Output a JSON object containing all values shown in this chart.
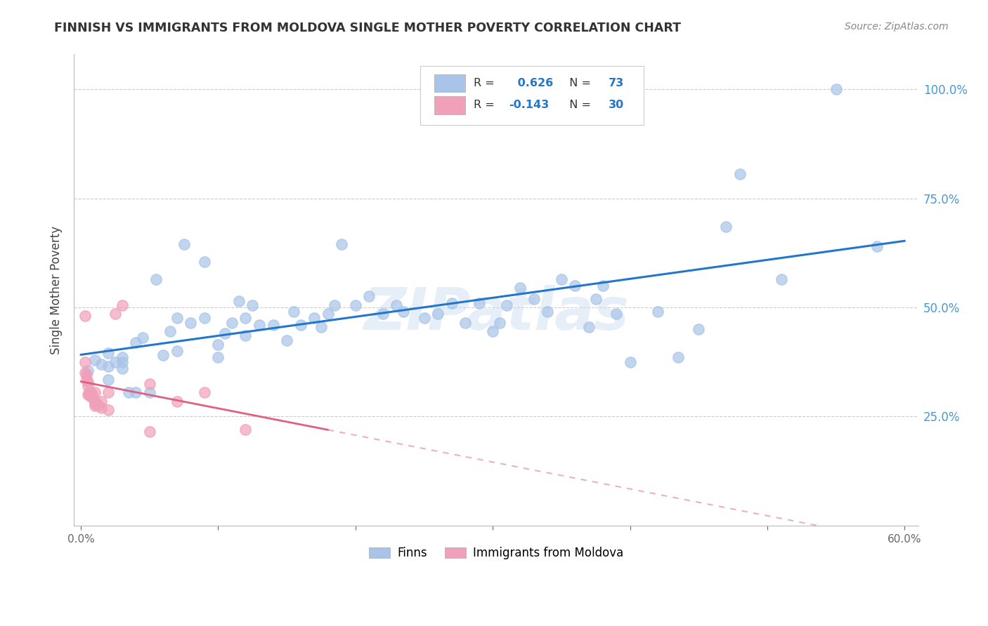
{
  "title": "FINNISH VS IMMIGRANTS FROM MOLDOVA SINGLE MOTHER POVERTY CORRELATION CHART",
  "source_text": "Source: ZipAtlas.com",
  "ylabel": "Single Mother Poverty",
  "xlim": [
    -0.005,
    0.61
  ],
  "ylim": [
    0.0,
    1.08
  ],
  "x_ticks": [
    0.0,
    0.1,
    0.2,
    0.3,
    0.4,
    0.5,
    0.6
  ],
  "x_tick_labels": [
    "0.0%",
    "",
    "",
    "",
    "",
    "",
    "60.0%"
  ],
  "y_ticks": [
    0.25,
    0.5,
    0.75,
    1.0
  ],
  "y_tick_labels": [
    "25.0%",
    "50.0%",
    "75.0%",
    "100.0%"
  ],
  "watermark": "ZIPatlas",
  "r_finns": 0.626,
  "n_finns": 73,
  "r_moldova": -0.143,
  "n_moldova": 30,
  "finns_color": "#a8c4e8",
  "moldova_color": "#f0a0b8",
  "trendline_finns_color": "#2277cc",
  "trendline_moldova_color": "#e06080",
  "finns_x": [
    0.005,
    0.01,
    0.015,
    0.02,
    0.02,
    0.02,
    0.025,
    0.03,
    0.03,
    0.03,
    0.035,
    0.04,
    0.04,
    0.045,
    0.05,
    0.055,
    0.06,
    0.065,
    0.07,
    0.07,
    0.075,
    0.08,
    0.09,
    0.09,
    0.1,
    0.1,
    0.105,
    0.11,
    0.115,
    0.12,
    0.12,
    0.125,
    0.13,
    0.14,
    0.15,
    0.155,
    0.16,
    0.17,
    0.175,
    0.18,
    0.185,
    0.19,
    0.2,
    0.21,
    0.22,
    0.23,
    0.235,
    0.25,
    0.26,
    0.27,
    0.28,
    0.29,
    0.3,
    0.305,
    0.31,
    0.32,
    0.33,
    0.34,
    0.35,
    0.36,
    0.37,
    0.375,
    0.38,
    0.39,
    0.4,
    0.42,
    0.435,
    0.45,
    0.47,
    0.48,
    0.51,
    0.55,
    0.58
  ],
  "finns_y": [
    0.355,
    0.38,
    0.37,
    0.335,
    0.365,
    0.395,
    0.375,
    0.375,
    0.36,
    0.385,
    0.305,
    0.305,
    0.42,
    0.43,
    0.305,
    0.565,
    0.39,
    0.445,
    0.4,
    0.475,
    0.645,
    0.465,
    0.475,
    0.605,
    0.385,
    0.415,
    0.44,
    0.465,
    0.515,
    0.435,
    0.475,
    0.505,
    0.46,
    0.46,
    0.425,
    0.49,
    0.46,
    0.475,
    0.455,
    0.485,
    0.505,
    0.645,
    0.505,
    0.525,
    0.485,
    0.505,
    0.49,
    0.475,
    0.485,
    0.51,
    0.465,
    0.51,
    0.445,
    0.465,
    0.505,
    0.545,
    0.52,
    0.49,
    0.565,
    0.55,
    0.455,
    0.52,
    0.55,
    0.485,
    0.375,
    0.49,
    0.385,
    0.45,
    0.685,
    0.805,
    0.565,
    1.0,
    0.64
  ],
  "moldova_x": [
    0.003,
    0.003,
    0.003,
    0.004,
    0.004,
    0.005,
    0.005,
    0.005,
    0.006,
    0.006,
    0.007,
    0.007,
    0.008,
    0.009,
    0.01,
    0.01,
    0.01,
    0.012,
    0.013,
    0.015,
    0.015,
    0.02,
    0.02,
    0.025,
    0.03,
    0.05,
    0.05,
    0.07,
    0.09,
    0.12
  ],
  "moldova_y": [
    0.48,
    0.375,
    0.35,
    0.345,
    0.335,
    0.33,
    0.32,
    0.3,
    0.305,
    0.3,
    0.305,
    0.295,
    0.3,
    0.29,
    0.305,
    0.28,
    0.275,
    0.28,
    0.275,
    0.285,
    0.27,
    0.305,
    0.265,
    0.485,
    0.505,
    0.325,
    0.215,
    0.285,
    0.305,
    0.22
  ]
}
